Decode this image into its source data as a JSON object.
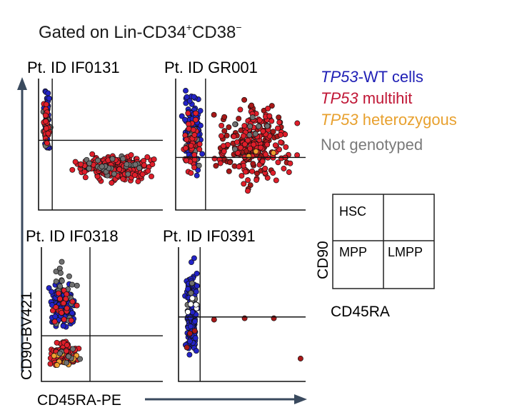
{
  "figure": {
    "title_prefix": "Gated on Lin",
    "title_minus1": "-",
    "title_cd34": "CD34",
    "title_sup_plus": "+",
    "title_cd38": "CD38",
    "title_sup_minus": "−",
    "x_axis_label": "CD45RA-PE",
    "y_axis_label": "CD90-BV421",
    "legend": [
      {
        "italic": "TP53",
        "rest": "-WT cells",
        "color": "#1f1fb5"
      },
      {
        "italic": "TP53",
        "rest": " multihit",
        "color": "#c01736"
      },
      {
        "italic": "TP53",
        "rest": " heterozygous",
        "color": "#e8a12f"
      },
      {
        "italic": "",
        "rest": "Not genotyped",
        "color": "#7a7a7a"
      }
    ],
    "key": {
      "quadrants": [
        "HSC",
        "",
        "MPP",
        "LMPP"
      ],
      "xlabel": "CD45RA",
      "ylabel": "CD90"
    },
    "colors": {
      "wt": "#2323c8",
      "multihit": "#e01e2a",
      "multihit_dark": "#a81818",
      "het": "#f0a030",
      "ng": "#707070",
      "axis": "#3a4a5e"
    }
  },
  "chart_data": [
    {
      "type": "scatter",
      "title": "Pt. ID IF0131",
      "xlim": [
        0,
        100
      ],
      "ylim": [
        0,
        100
      ],
      "gates": {
        "x": 11,
        "y": 53
      },
      "clusters": [
        {
          "name": "TP53-WT cells",
          "color": "#2323c8",
          "n": 60,
          "cx": [
            3,
            10
          ],
          "cy": [
            38,
            98
          ]
        },
        {
          "name": "Not genotyped",
          "color": "#707070",
          "n": 14,
          "cx": [
            3,
            10
          ],
          "cy": [
            40,
            88
          ]
        },
        {
          "name": "TP53 multihit",
          "color": "#e01e2a",
          "n": 22,
          "cx": [
            3,
            10
          ],
          "cy": [
            40,
            90
          ]
        },
        {
          "name": "TP53 multihit",
          "color": "#e01e2a",
          "n": 230,
          "cx": [
            22,
            100
          ],
          "cy": [
            20,
            45
          ]
        },
        {
          "name": "Not genotyped",
          "color": "#707070",
          "n": 25,
          "cx": [
            25,
            98
          ],
          "cy": [
            22,
            44
          ]
        }
      ]
    },
    {
      "type": "scatter",
      "title": "Pt. ID GR001",
      "xlim": [
        0,
        100
      ],
      "ylim": [
        0,
        100
      ],
      "gates": {
        "x": 23,
        "y": 40
      },
      "clusters": [
        {
          "name": "TP53-WT cells",
          "color": "#2323c8",
          "n": 130,
          "cx": [
            3,
            22
          ],
          "cy": [
            20,
            96
          ]
        },
        {
          "name": "Not genotyped",
          "color": "#707070",
          "n": 16,
          "cx": [
            3,
            22
          ],
          "cy": [
            20,
            80
          ]
        },
        {
          "name": "TP53 multihit",
          "color": "#e01e2a",
          "n": 40,
          "cx": [
            3,
            22
          ],
          "cy": [
            15,
            85
          ]
        },
        {
          "name": "TP53 multihit",
          "color": "#a81818",
          "n": 120,
          "cx": [
            24,
            92
          ],
          "cy": [
            10,
            90
          ]
        },
        {
          "name": "TP53 multihit",
          "color": "#e01e2a",
          "n": 140,
          "cx": [
            24,
            100
          ],
          "cy": [
            8,
            92
          ]
        },
        {
          "name": "TP53 heterozygous",
          "color": "#f0a030",
          "n": 3,
          "cx": [
            40,
            80
          ],
          "cy": [
            35,
            60
          ]
        },
        {
          "name": "Not genotyped",
          "color": "#707070",
          "n": 8,
          "cx": [
            30,
            90
          ],
          "cy": [
            30,
            95
          ]
        }
      ]
    },
    {
      "type": "scatter",
      "title": "Pt. ID IF0318",
      "xlim": [
        0,
        100
      ],
      "ylim": [
        0,
        100
      ],
      "gates": {
        "x": 40,
        "y": 34
      },
      "clusters": [
        {
          "name": "TP53-WT cells",
          "color": "#2323c8",
          "n": 140,
          "cx": [
            4,
            32
          ],
          "cy": [
            33,
            78
          ]
        },
        {
          "name": "Not genotyped",
          "color": "#707070",
          "n": 22,
          "cx": [
            4,
            32
          ],
          "cy": [
            35,
            95
          ]
        },
        {
          "name": "TP53 multihit",
          "color": "#e01e2a",
          "n": 20,
          "cx": [
            4,
            32
          ],
          "cy": [
            35,
            75
          ]
        },
        {
          "name": "TP53 multihit",
          "color": "#e01e2a",
          "n": 110,
          "cx": [
            4,
            34
          ],
          "cy": [
            10,
            32
          ]
        },
        {
          "name": "TP53 heterozygous",
          "color": "#f0a030",
          "n": 10,
          "cx": [
            6,
            32
          ],
          "cy": [
            8,
            28
          ]
        },
        {
          "name": "Not genotyped",
          "color": "#707070",
          "n": 8,
          "cx": [
            6,
            34
          ],
          "cy": [
            10,
            32
          ]
        }
      ]
    },
    {
      "type": "scatter",
      "title": "Pt. ID IF0391",
      "xlim": [
        0,
        100
      ],
      "ylim": [
        0,
        100
      ],
      "gates": {
        "x": 17,
        "y": 48
      },
      "clusters": [
        {
          "name": "TP53-WT cells",
          "color": "#2323c8",
          "n": 170,
          "cx": [
            4,
            16
          ],
          "cy": [
            5,
            98
          ]
        },
        {
          "name": "Not genotyped",
          "color": "#707070",
          "n": 6,
          "cx": [
            4,
            16
          ],
          "cy": [
            40,
            85
          ]
        },
        {
          "name": "TP53 multihit",
          "color": "#a81818",
          "n": 3,
          "cx": [
            4,
            14
          ],
          "cy": [
            20,
            60
          ]
        },
        {
          "name": "Not genotyped",
          "color": "#ffffff",
          "n": 6,
          "cx": [
            6,
            16
          ],
          "cy": [
            45,
            75
          ]
        }
      ],
      "points": [
        {
          "name": "TP53 multihit",
          "color": "#a81818",
          "x": 28,
          "y": 46
        },
        {
          "name": "TP53 multihit",
          "color": "#a81818",
          "x": 52,
          "y": 47
        },
        {
          "name": "TP53 multihit",
          "color": "#a81818",
          "x": 75,
          "y": 47
        },
        {
          "name": "TP53 multihit",
          "color": "#a81818",
          "x": 96,
          "y": 17
        }
      ]
    }
  ]
}
